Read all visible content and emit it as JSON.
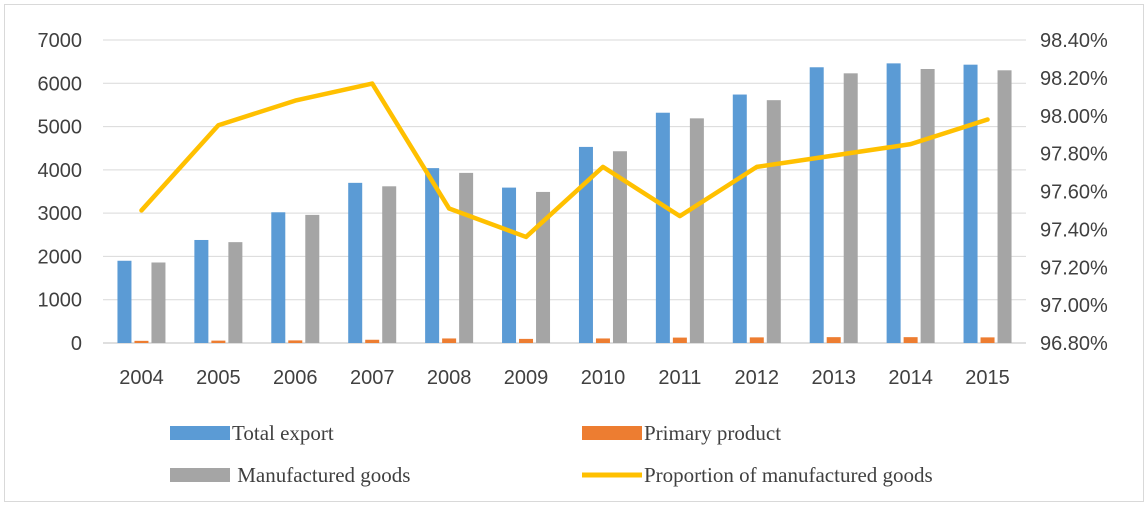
{
  "chart_data": {
    "type": "bar",
    "categories": [
      "2004",
      "2005",
      "2006",
      "2007",
      "2008",
      "2009",
      "2010",
      "2011",
      "2012",
      "2013",
      "2014",
      "2015"
    ],
    "series": [
      {
        "name": "Total export",
        "type": "bar",
        "axis": "left",
        "color": "#5b9bd5",
        "values": [
          1900,
          2380,
          3020,
          3700,
          4040,
          3590,
          4530,
          5320,
          5740,
          6370,
          6460,
          6430
        ]
      },
      {
        "name": "Primary product",
        "type": "bar",
        "axis": "left",
        "color": "#ed7d31",
        "values": [
          50,
          55,
          60,
          75,
          105,
          95,
          105,
          125,
          130,
          135,
          135,
          130
        ]
      },
      {
        "name": "Manufactured goods",
        "type": "bar",
        "axis": "left",
        "color": "#a5a5a5",
        "values": [
          1860,
          2330,
          2960,
          3620,
          3930,
          3490,
          4430,
          5190,
          5610,
          6230,
          6330,
          6300
        ]
      },
      {
        "name": "Proportion of manufactured goods",
        "type": "line",
        "axis": "right",
        "color": "#ffc000",
        "values": [
          97.5,
          97.95,
          98.08,
          98.17,
          97.51,
          97.36,
          97.73,
          97.47,
          97.73,
          97.79,
          97.85,
          97.98
        ]
      }
    ],
    "y_left": {
      "min": 0,
      "max": 7000,
      "ticks": [
        "0",
        "1000",
        "2000",
        "3000",
        "4000",
        "5000",
        "6000",
        "7000"
      ]
    },
    "y_right": {
      "min": 96.8,
      "max": 98.4,
      "ticks": [
        "96.80%",
        "97.00%",
        "97.20%",
        "97.40%",
        "97.60%",
        "97.80%",
        "98.00%",
        "98.20%",
        "98.40%"
      ]
    },
    "grid": true,
    "legend_position": "bottom",
    "legend": [
      {
        "label": "Total export",
        "color": "#5b9bd5",
        "kind": "bar"
      },
      {
        "label": "Primary product",
        "color": "#ed7d31",
        "kind": "bar"
      },
      {
        "label": " Manufactured goods",
        "color": "#a5a5a5",
        "kind": "bar"
      },
      {
        "label": "Proportion of manufactured goods",
        "color": "#ffc000",
        "kind": "line"
      }
    ]
  }
}
